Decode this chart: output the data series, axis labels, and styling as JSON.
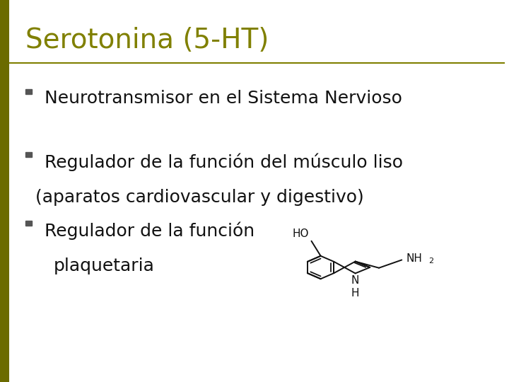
{
  "title": "Serotonina (5-HT)",
  "title_color": "#808000",
  "title_fontsize": 28,
  "left_bar_color": "#6b6b00",
  "line_color": "#808000",
  "bg_color": "#ffffff",
  "bullet_color": "#555555",
  "text_color": "#111111",
  "body_fontsize": 18,
  "bullet1": "Neurotransmisor en el Sistema Nervioso",
  "bullet2_line1": "Regulador de la función del músculo liso",
  "bullet2_line2": "(aparatos cardiovascular y digestivo)",
  "bullet3_line1": "Regulador de la función",
  "bullet3_line2": "plaquetaria",
  "mol_color": "#111111",
  "mol_lw": 1.4
}
